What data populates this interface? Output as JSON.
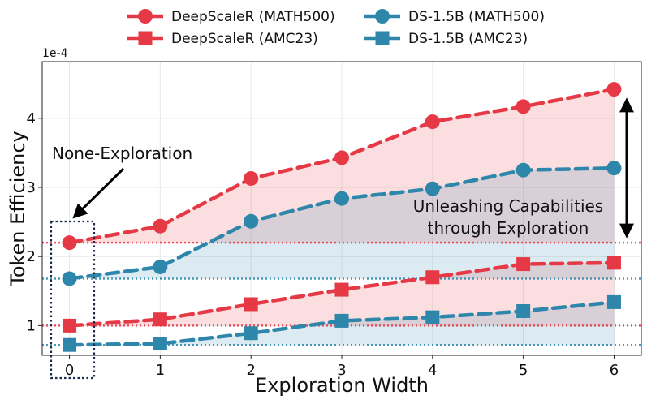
{
  "chart_data": {
    "type": "line",
    "xlabel": "Exploration Width",
    "ylabel": "Token Efficiency",
    "y_exponent_label": "1e-4",
    "x": [
      0,
      1,
      2,
      3,
      4,
      5,
      6
    ],
    "xlim": [
      -0.3,
      6.3
    ],
    "ylim": [
      0.57,
      4.82
    ],
    "yticks": [
      1,
      2,
      3,
      4
    ],
    "grid": true,
    "legend_position": "top",
    "series": [
      {
        "name": "DeepScaleR (MATH500)",
        "values": [
          2.2,
          2.44,
          3.13,
          3.43,
          3.95,
          4.17,
          4.42
        ],
        "color": "#E63946",
        "marker": "circle"
      },
      {
        "name": "DeepScaleR (AMC23)",
        "values": [
          1.0,
          1.09,
          1.31,
          1.52,
          1.7,
          1.89,
          1.91
        ],
        "color": "#E63946",
        "marker": "square"
      },
      {
        "name": "DS-1.5B (MATH500)",
        "values": [
          1.68,
          1.85,
          2.51,
          2.84,
          2.98,
          3.25,
          3.28
        ],
        "color": "#2E86AB",
        "marker": "circle"
      },
      {
        "name": "DS-1.5B (AMC23)",
        "values": [
          0.72,
          0.74,
          0.89,
          1.07,
          1.12,
          1.21,
          1.34
        ],
        "color": "#2E86AB",
        "marker": "square"
      }
    ],
    "reference_lines": [
      {
        "y": 2.2,
        "color": "#E63946"
      },
      {
        "y": 1.68,
        "color": "#2E86AB"
      },
      {
        "y": 1.0,
        "color": "#E63946"
      },
      {
        "y": 0.72,
        "color": "#2E86AB"
      }
    ],
    "annotations": {
      "none_exploration": "None-Exploration",
      "unleashing_line1": "Unleashing Capabilities",
      "unleashing_line2": "through Exploration"
    }
  }
}
